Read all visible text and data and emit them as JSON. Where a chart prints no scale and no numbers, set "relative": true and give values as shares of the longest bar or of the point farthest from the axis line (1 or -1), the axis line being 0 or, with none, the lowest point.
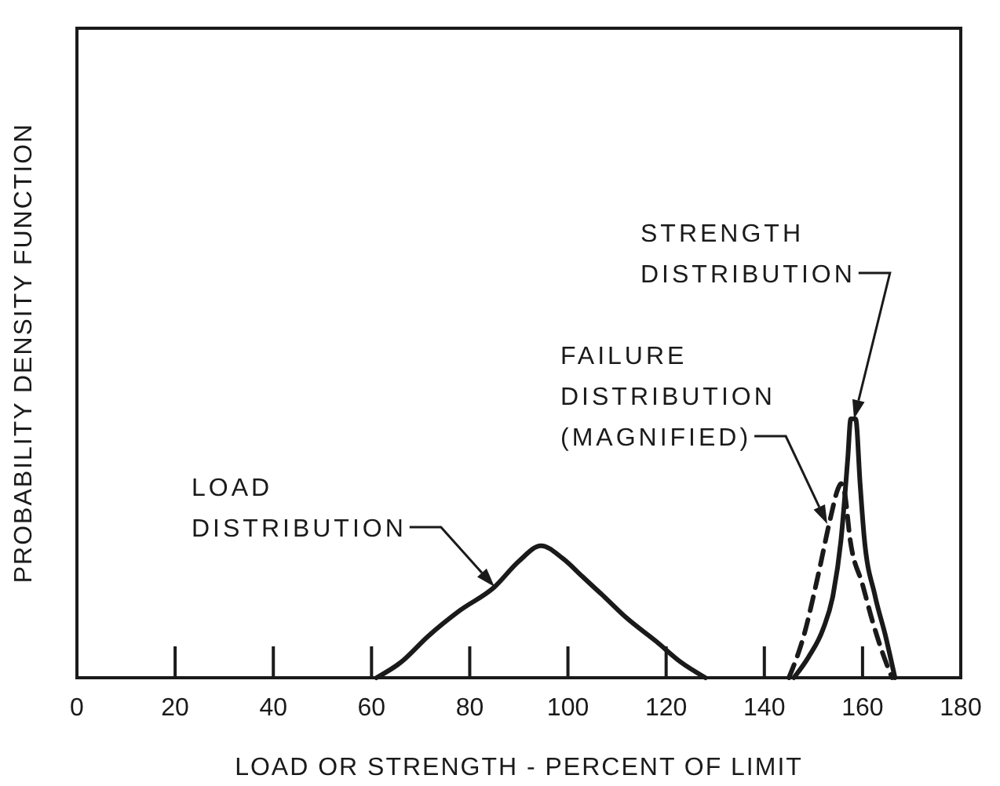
{
  "chart_data": {
    "type": "line",
    "xlabel": "LOAD OR STRENGTH - PERCENT OF LIMIT",
    "ylabel": "PROBABILITY DENSITY FUNCTION",
    "relative": true,
    "xlim": [
      0,
      180
    ],
    "xticks": [
      0,
      20,
      40,
      60,
      80,
      100,
      120,
      140,
      160,
      180
    ],
    "grid": false,
    "marker": "none",
    "series": [
      {
        "color": "#1a1a1a",
        "line_style": "solid",
        "x": [
          61,
          66,
          71.5,
          78,
          85,
          90,
          94.5,
          99,
          103,
          107,
          112,
          118,
          123,
          128
        ],
        "values": [
          0,
          0.06,
          0.16,
          0.26,
          0.35,
          0.45,
          0.51,
          0.46,
          0.39,
          0.32,
          0.23,
          0.14,
          0.06,
          0
        ]
      },
      {
        "color": "#1a1a1a",
        "line_style": "solid",
        "x": [
          146,
          149,
          152,
          154,
          155.6,
          157,
          157.6,
          158.6,
          159.5,
          160.3,
          162.5,
          164.7,
          166.6
        ],
        "values": [
          0,
          0.08,
          0.19,
          0.32,
          0.53,
          0.85,
          1,
          1,
          0.75,
          0.55,
          0.32,
          0.16,
          0
        ]
      },
      {
        "color": "#1a1a1a",
        "line_style": "dashed",
        "x": [
          145,
          148,
          151,
          153.5,
          155,
          155.6,
          156.3,
          157.5,
          160,
          162,
          164,
          166
        ],
        "values": [
          0,
          0.16,
          0.4,
          0.62,
          0.73,
          0.75,
          0.72,
          0.53,
          0.36,
          0.22,
          0.1,
          0
        ]
      }
    ],
    "annotations": [
      "LOAD\nDISTRIBUTION",
      "STRENGTH\nDISTRIBUTION",
      "FAILURE\nDISTRIBUTION\n(MAGNIFIED)"
    ]
  }
}
